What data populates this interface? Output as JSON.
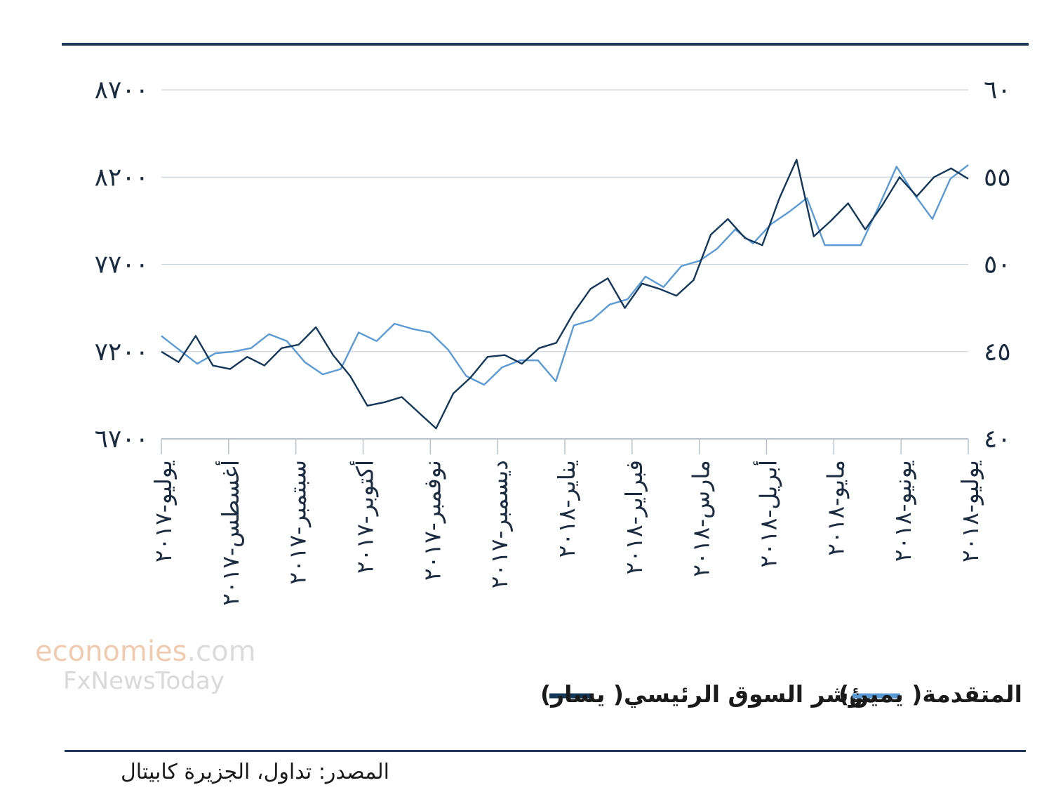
{
  "chart_data": {
    "type": "line",
    "y_left": {
      "ticks": [
        "٨٧٠٠",
        "٨٢٠٠",
        "٧٧٠٠",
        "٧٢٠٠",
        "٦٧٠٠"
      ],
      "range": [
        6700,
        8700
      ]
    },
    "y_right": {
      "ticks": [
        "٦٠",
        "٥٥",
        "٥٠",
        "٤٥",
        "٤٠"
      ],
      "range": [
        40,
        60
      ]
    },
    "x_labels": [
      "يوليو-٢٠١٧",
      "أغسطس-٢٠١٧",
      "سبتمبر-٢٠١٧",
      "أكتوبر-٢٠١٧",
      "نوفمبر-٢٠١٧",
      "ديسمبر-٢٠١٧",
      "يناير-٢٠١٨",
      "فبراير-٢٠١٨",
      "مارس-٢٠١٨",
      "أبريل-٢٠١٨",
      "مايو-٢٠١٨",
      "يونيو-٢٠١٨",
      "يوليو-٢٠١٨"
    ],
    "series": [
      {
        "name": "مؤشر السوق الرئيسي( يسار)",
        "axis": "left",
        "color": "#13385a",
        "values": [
          7200,
          7140,
          7290,
          7120,
          7100,
          7170,
          7120,
          7220,
          7240,
          7340,
          7180,
          7060,
          6890,
          6910,
          6940,
          6850,
          6760,
          6960,
          7050,
          7170,
          7180,
          7130,
          7220,
          7250,
          7420,
          7560,
          7620,
          7450,
          7590,
          7560,
          7520,
          7610,
          7870,
          7960,
          7850,
          7810,
          8080,
          8300,
          7860,
          7950,
          8050,
          7900,
          8040,
          8200,
          8090,
          8200,
          8250,
          8190
        ]
      },
      {
        "name": "المتقدمة( يمين)",
        "axis": "right",
        "color": "#5b9bd5",
        "values": [
          45.9,
          45.1,
          44.3,
          44.9,
          45.0,
          45.2,
          46.0,
          45.6,
          44.4,
          43.7,
          44.0,
          46.1,
          45.6,
          46.6,
          46.3,
          46.1,
          45.1,
          43.6,
          43.1,
          44.1,
          44.5,
          44.5,
          43.3,
          46.5,
          46.8,
          47.7,
          48.0,
          49.3,
          48.7,
          49.9,
          50.2,
          50.9,
          52.0,
          51.2,
          52.3,
          53.0,
          53.8,
          51.1,
          51.1,
          51.1,
          53.3,
          55.6,
          54.0,
          52.6,
          54.9,
          55.7
        ]
      }
    ],
    "grid": true,
    "legend": "bottom"
  },
  "source": "المصدر: تداول، الجزيرة كابيتال",
  "watermark": {
    "brand": "economies",
    "domain": ".com",
    "partner": "FxNewsToday"
  }
}
